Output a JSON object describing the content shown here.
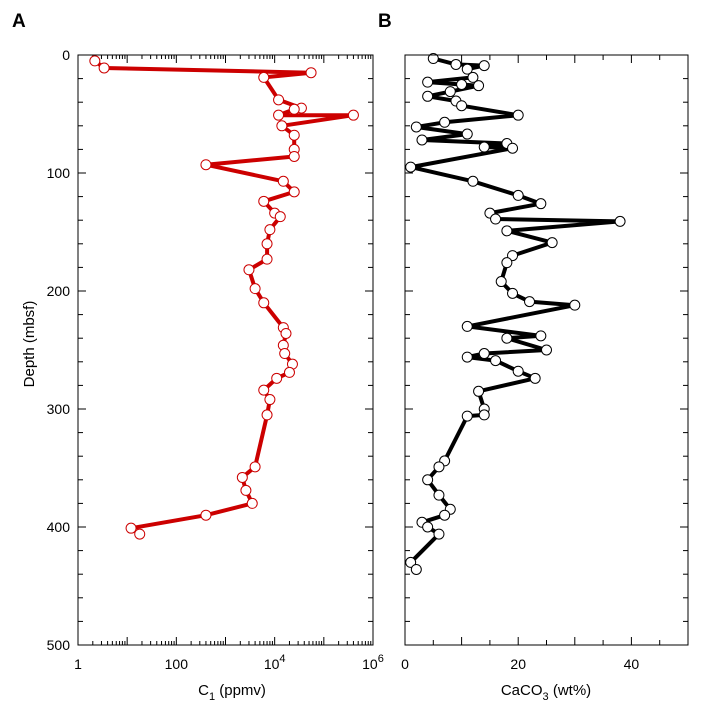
{
  "chart_data": [
    {
      "panel": "A",
      "type": "line",
      "xscale": "log",
      "xlabel": "C",
      "xlabel_sub": "1",
      "xlabel_unit": " (ppmv)",
      "ylabel": "Depth (mbsf)",
      "xlim": [
        1,
        1000000
      ],
      "ylim": [
        0,
        500
      ],
      "yreversed": true,
      "xtick_labels": [
        "1",
        "100",
        "10",
        "10"
      ],
      "xtick_sup": [
        "",
        "",
        "4",
        "6"
      ],
      "ytick_labels": [
        "0",
        "100",
        "200",
        "300",
        "400",
        "500"
      ],
      "line_color": "#cc0000",
      "marker": "open-circle",
      "series": [
        {
          "points": [
            [
              2.2,
              5
            ],
            [
              3.4,
              11
            ],
            [
              55000,
              15
            ],
            [
              6000,
              19
            ],
            [
              12000,
              38
            ],
            [
              35000,
              45
            ],
            [
              25000,
              46
            ],
            [
              12000,
              51
            ],
            [
              400000,
              51
            ],
            [
              14000,
              60
            ],
            [
              25000,
              68
            ],
            [
              25000,
              80
            ],
            [
              25000,
              86
            ],
            [
              400,
              93
            ],
            [
              15000,
              107
            ],
            [
              25000,
              116
            ],
            [
              6000,
              124
            ],
            [
              10000,
              134
            ],
            [
              13000,
              137
            ],
            [
              8000,
              148
            ],
            [
              7000,
              160
            ],
            [
              7000,
              173
            ],
            [
              3000,
              182
            ],
            [
              4000,
              198
            ],
            [
              6000,
              210
            ],
            [
              15000,
              231
            ],
            [
              17000,
              236
            ],
            [
              15000,
              246
            ],
            [
              16000,
              253
            ],
            [
              23000,
              262
            ],
            [
              20000,
              269
            ],
            [
              11000,
              274
            ],
            [
              6000,
              284
            ],
            [
              8000,
              292
            ],
            [
              7000,
              305
            ],
            [
              4000,
              349
            ],
            [
              2200,
              358
            ],
            [
              2600,
              369
            ],
            [
              3500,
              380
            ],
            [
              400,
              390
            ],
            [
              12,
              401
            ],
            [
              18,
              406
            ]
          ]
        }
      ]
    },
    {
      "panel": "B",
      "type": "line",
      "xlabel": "CaCO",
      "xlabel_sub": "3",
      "xlabel_unit": " (wt%)",
      "xlim": [
        0,
        50
      ],
      "ylim": [
        0,
        500
      ],
      "yreversed": true,
      "xtick_labels": [
        "0",
        "20",
        "40"
      ],
      "line_color": "#000000",
      "marker": "open-circle",
      "series": [
        {
          "points": [
            [
              5,
              3
            ],
            [
              9,
              8
            ],
            [
              14,
              9
            ],
            [
              11,
              12
            ],
            [
              12,
              19
            ],
            [
              4,
              23
            ],
            [
              10,
              25
            ],
            [
              13,
              26
            ],
            [
              8,
              31
            ],
            [
              4,
              35
            ],
            [
              9,
              39
            ],
            [
              10,
              43
            ],
            [
              20,
              51
            ],
            [
              7,
              57
            ],
            [
              2,
              61
            ],
            [
              11,
              67
            ],
            [
              3,
              72
            ],
            [
              18,
              75
            ],
            [
              14,
              78
            ],
            [
              19,
              79
            ],
            [
              1,
              95
            ],
            [
              12,
              107
            ],
            [
              20,
              119
            ],
            [
              24,
              126
            ],
            [
              15,
              134
            ],
            [
              16,
              139
            ],
            [
              38,
              141
            ],
            [
              18,
              149
            ],
            [
              26,
              159
            ],
            [
              19,
              170
            ],
            [
              18,
              176
            ],
            [
              17,
              192
            ],
            [
              19,
              202
            ],
            [
              22,
              209
            ],
            [
              30,
              212
            ],
            [
              11,
              230
            ],
            [
              24,
              238
            ],
            [
              18,
              240
            ],
            [
              25,
              250
            ],
            [
              14,
              253
            ],
            [
              11,
              256
            ],
            [
              16,
              259
            ],
            [
              20,
              268
            ],
            [
              23,
              274
            ],
            [
              13,
              285
            ],
            [
              14,
              300
            ],
            [
              14,
              305
            ],
            [
              11,
              306
            ],
            [
              7,
              344
            ],
            [
              6,
              349
            ],
            [
              4,
              360
            ],
            [
              6,
              373
            ],
            [
              8,
              385
            ],
            [
              7,
              390
            ],
            [
              3,
              396
            ],
            [
              4,
              400
            ],
            [
              6,
              406
            ],
            [
              1,
              430
            ],
            [
              2,
              436
            ]
          ]
        }
      ]
    }
  ]
}
